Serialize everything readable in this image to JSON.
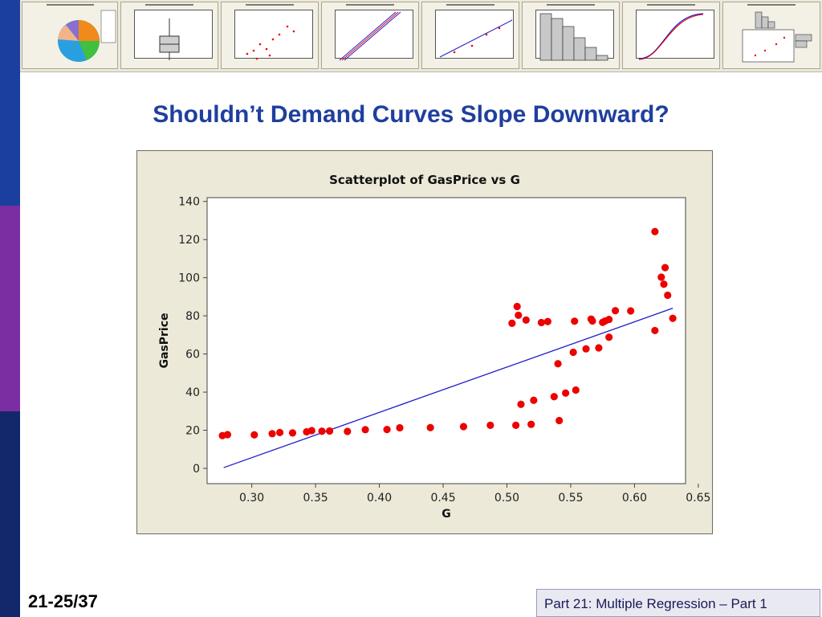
{
  "slide": {
    "title": "Shouldn’t Demand Curves Slope Downward?",
    "number": "21-25/37",
    "footer": "Part 21: Multiple Regression – Part 1"
  },
  "colors": {
    "accent": "#1f3f9e",
    "points": "#ee0000",
    "fit_line": "#1d1dc8"
  },
  "chart_data": {
    "type": "scatter",
    "title": "Scatterplot of GasPrice vs G",
    "xlabel": "G",
    "ylabel": "GasPrice",
    "xlim": [
      0.265,
      0.64
    ],
    "ylim": [
      -8,
      142
    ],
    "xticks": [
      0.3,
      0.35,
      0.4,
      0.45,
      0.5,
      0.55,
      0.6,
      0.65
    ],
    "xtick_labels": [
      "0.30",
      "0.35",
      "0.40",
      "0.45",
      "0.50",
      "0.55",
      "0.60",
      "0.65"
    ],
    "yticks": [
      0,
      20,
      40,
      60,
      80,
      100,
      120,
      140
    ],
    "ytick_labels": [
      "0",
      "20",
      "40",
      "60",
      "80",
      "100",
      "120",
      "140"
    ],
    "grid": false,
    "legend": "none",
    "fit_line": {
      "x": [
        0.278,
        0.63
      ],
      "y": [
        0.4,
        84.0
      ]
    },
    "points": [
      [
        0.277,
        17.2
      ],
      [
        0.281,
        17.7
      ],
      [
        0.302,
        17.6
      ],
      [
        0.316,
        18.2
      ],
      [
        0.322,
        18.8
      ],
      [
        0.332,
        18.6
      ],
      [
        0.343,
        19.2
      ],
      [
        0.347,
        19.8
      ],
      [
        0.355,
        19.5
      ],
      [
        0.361,
        19.6
      ],
      [
        0.375,
        19.4
      ],
      [
        0.389,
        20.3
      ],
      [
        0.406,
        20.4
      ],
      [
        0.416,
        21.3
      ],
      [
        0.44,
        21.4
      ],
      [
        0.466,
        21.9
      ],
      [
        0.487,
        22.6
      ],
      [
        0.507,
        22.6
      ],
      [
        0.519,
        23.1
      ],
      [
        0.541,
        25.1
      ],
      [
        0.511,
        33.6
      ],
      [
        0.521,
        35.7
      ],
      [
        0.537,
        37.6
      ],
      [
        0.546,
        39.5
      ],
      [
        0.554,
        41.1
      ],
      [
        0.54,
        54.9
      ],
      [
        0.552,
        60.9
      ],
      [
        0.562,
        62.7
      ],
      [
        0.572,
        63.2
      ],
      [
        0.58,
        68.8
      ],
      [
        0.504,
        76.1
      ],
      [
        0.508,
        84.9
      ],
      [
        0.509,
        80.3
      ],
      [
        0.515,
        77.8
      ],
      [
        0.527,
        76.5
      ],
      [
        0.532,
        77.0
      ],
      [
        0.553,
        77.2
      ],
      [
        0.566,
        78.3
      ],
      [
        0.567,
        77.3
      ],
      [
        0.575,
        76.6
      ],
      [
        0.577,
        77.3
      ],
      [
        0.58,
        78.1
      ],
      [
        0.585,
        82.7
      ],
      [
        0.597,
        82.6
      ],
      [
        0.616,
        72.3
      ],
      [
        0.616,
        124.2
      ],
      [
        0.621,
        100.3
      ],
      [
        0.623,
        96.6
      ],
      [
        0.624,
        105.3
      ],
      [
        0.626,
        90.8
      ],
      [
        0.63,
        78.7
      ]
    ]
  }
}
